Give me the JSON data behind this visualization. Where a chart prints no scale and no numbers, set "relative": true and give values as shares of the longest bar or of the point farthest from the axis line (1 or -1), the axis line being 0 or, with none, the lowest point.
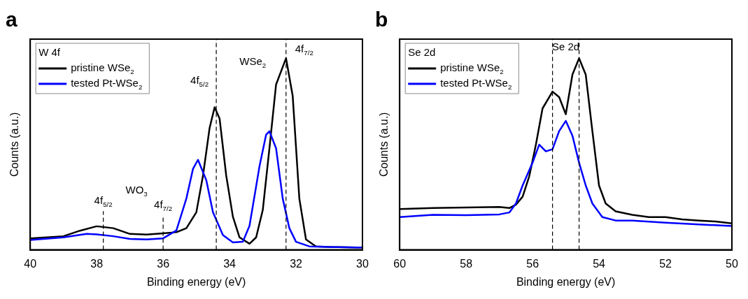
{
  "chart_data": [
    {
      "type": "line",
      "title": "a",
      "xlabel": "Binding energy (eV)",
      "ylabel": "Counts (a.u.)",
      "legend_title": "W 4f",
      "legend": "top left",
      "relative": true,
      "grid": false,
      "marker": "none",
      "line_style": "solid",
      "xlim": [
        40,
        30
      ],
      "xticks": [
        40,
        38,
        36,
        34,
        32,
        30
      ],
      "series": [
        {
          "name": "pristine WSe$_{2}$",
          "color": "#000000",
          "x": [
            40,
            39,
            38.5,
            38,
            37.5,
            37,
            36.5,
            36,
            35.6,
            35.3,
            35.0,
            34.8,
            34.6,
            34.45,
            34.3,
            34.1,
            33.9,
            33.7,
            33.4,
            33.2,
            33.0,
            32.8,
            32.6,
            32.3,
            32.1,
            31.9,
            31.7,
            31.4,
            31,
            30
          ],
          "values": [
            0.06,
            0.071,
            0.1,
            0.123,
            0.113,
            0.083,
            0.08,
            0.086,
            0.092,
            0.113,
            0.196,
            0.387,
            0.637,
            0.744,
            0.685,
            0.387,
            0.173,
            0.065,
            0.032,
            0.065,
            0.208,
            0.53,
            0.863,
            1.0,
            0.804,
            0.268,
            0.054,
            0.018,
            0.015,
            0.012
          ]
        },
        {
          "name": "tested Pt-WSe$_{2}$",
          "color": "#0000ff",
          "x": [
            40,
            39,
            38.3,
            38,
            37.5,
            37,
            36.5,
            36,
            35.6,
            35.3,
            35.1,
            34.95,
            34.7,
            34.5,
            34.2,
            33.9,
            33.6,
            33.4,
            33.1,
            32.9,
            32.8,
            32.6,
            32.4,
            32.2,
            32.0,
            31.6,
            31,
            30
          ],
          "values": [
            0.051,
            0.065,
            0.083,
            0.081,
            0.071,
            0.057,
            0.054,
            0.06,
            0.101,
            0.268,
            0.423,
            0.47,
            0.363,
            0.196,
            0.077,
            0.039,
            0.042,
            0.125,
            0.435,
            0.601,
            0.619,
            0.53,
            0.268,
            0.113,
            0.042,
            0.018,
            0.015,
            0.012
          ]
        }
      ],
      "ref_lines": [
        {
          "axis": "x",
          "value": 37.8,
          "label": "4f$_{5/2}$",
          "color": "#000000",
          "line_style": "dashed"
        },
        {
          "axis": "x",
          "value": 36.0,
          "label": "4f$_{7/2}$",
          "color": "#000000",
          "line_style": "dashed"
        },
        {
          "axis": "x",
          "value": 34.4,
          "label": "4f$_{5/2}$",
          "color": "#000000",
          "line_style": "dashed"
        },
        {
          "axis": "x",
          "value": 32.3,
          "label": "4f$_{7/2}$",
          "color": "#000000",
          "line_style": "dashed"
        }
      ],
      "annotations": [
        "WO$_{3}$",
        "WSe$_{2}$"
      ]
    },
    {
      "type": "line",
      "title": "b",
      "xlabel": "Binding energy (eV)",
      "ylabel": "Counts (a.u.)",
      "legend_title": "Se 2d",
      "legend": "top left",
      "relative": true,
      "grid": false,
      "marker": "none",
      "line_style": "solid",
      "xlim": [
        60,
        50
      ],
      "xticks": [
        60,
        58,
        56,
        54,
        52,
        50
      ],
      "series": [
        {
          "name": "pristine WSe$_{2}$",
          "color": "#000000",
          "x": [
            60,
            59,
            58,
            57,
            56.7,
            56.5,
            56.3,
            56.1,
            55.9,
            55.7,
            55.4,
            55.2,
            55.0,
            54.8,
            54.6,
            54.4,
            54.2,
            54.0,
            53.8,
            53.5,
            53,
            52.5,
            52,
            51.5,
            51,
            50.5,
            50
          ],
          "values": [
            0.213,
            0.218,
            0.221,
            0.224,
            0.218,
            0.236,
            0.277,
            0.384,
            0.549,
            0.738,
            0.826,
            0.797,
            0.708,
            0.915,
            1.0,
            0.915,
            0.62,
            0.336,
            0.242,
            0.201,
            0.183,
            0.171,
            0.171,
            0.159,
            0.153,
            0.148,
            0.138
          ]
        },
        {
          "name": "tested Pt-WSe$_{2}$",
          "color": "#0000ff",
          "x": [
            60,
            59,
            58,
            57,
            56.7,
            56.5,
            56.3,
            56.0,
            55.8,
            55.6,
            55.4,
            55.2,
            55.0,
            54.8,
            54.6,
            54.4,
            54.2,
            53.9,
            53.5,
            53,
            52,
            51,
            50
          ],
          "values": [
            0.171,
            0.183,
            0.181,
            0.185,
            0.195,
            0.242,
            0.336,
            0.455,
            0.549,
            0.514,
            0.525,
            0.62,
            0.673,
            0.596,
            0.455,
            0.336,
            0.242,
            0.171,
            0.153,
            0.153,
            0.142,
            0.133,
            0.124
          ]
        }
      ],
      "ref_lines": [
        {
          "axis": "x",
          "value": 55.4,
          "color": "#000000",
          "line_style": "dashed"
        },
        {
          "axis": "x",
          "value": 54.6,
          "color": "#000000",
          "line_style": "dashed"
        }
      ],
      "annotations": [
        "Se 2d"
      ]
    }
  ]
}
